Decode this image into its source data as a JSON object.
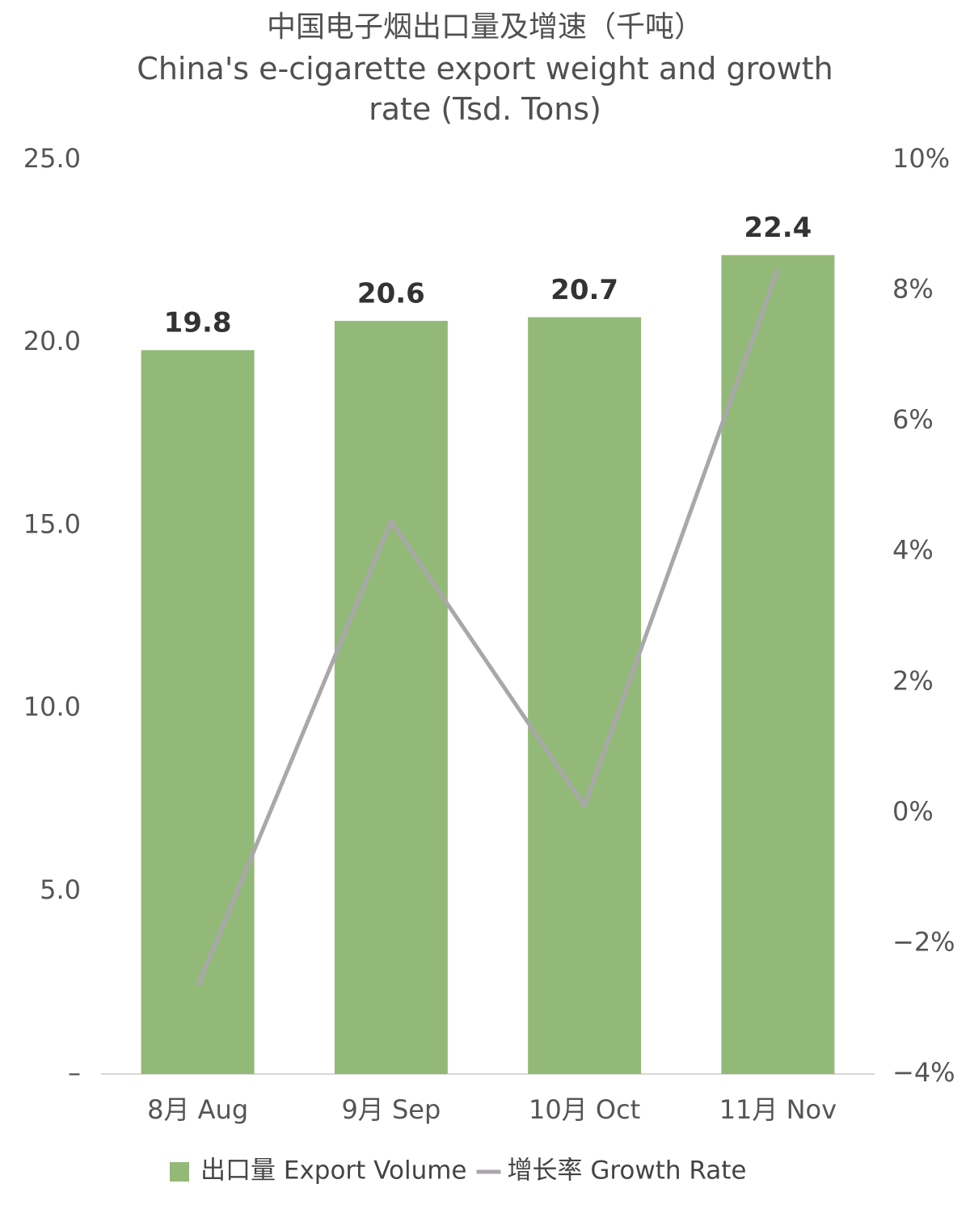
{
  "chart_data": {
    "type": "bar",
    "title": "中国电子烟出口量及增速（千吨）",
    "subtitle": "China's e-cigarette export weight and growth rate (Tsd. Tons)",
    "categories": [
      "8月 Aug",
      "9月 Sep",
      "10月 Oct",
      "11月 Nov"
    ],
    "series": [
      {
        "name": "出口量 Export Volume",
        "type": "bar",
        "color": "#93b978",
        "values": [
          19.8,
          20.6,
          20.7,
          22.4
        ]
      },
      {
        "name": "增长率 Growth Rate",
        "type": "line",
        "axis": "y2",
        "color": "#aaa7ab",
        "values": [
          -2.65,
          4.47,
          0.11,
          8.33
        ]
      }
    ],
    "ylim": [
      0,
      25
    ],
    "yticks": [
      {
        "value": 0,
        "label": "–"
      },
      {
        "value": 5,
        "label": "5.0"
      },
      {
        "value": 10,
        "label": "10.0"
      },
      {
        "value": 15,
        "label": "15.0"
      },
      {
        "value": 20,
        "label": "20.0"
      },
      {
        "value": 25,
        "label": "25.0"
      }
    ],
    "y2lim": [
      -4,
      10
    ],
    "y2ticks": [
      {
        "value": -4,
        "label": "−4%"
      },
      {
        "value": -2,
        "label": "−2%"
      },
      {
        "value": 0,
        "label": "0%"
      },
      {
        "value": 2,
        "label": "2%"
      },
      {
        "value": 4,
        "label": "4%"
      },
      {
        "value": 6,
        "label": "6%"
      },
      {
        "value": 8,
        "label": "8%"
      },
      {
        "value": 10,
        "label": "10%"
      }
    ],
    "grid": false,
    "legend": "bottom"
  }
}
